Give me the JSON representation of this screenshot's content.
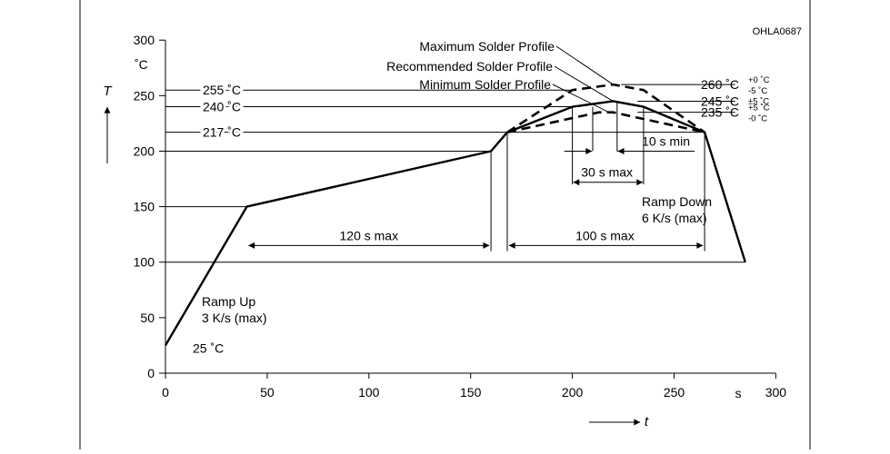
{
  "chart_data": {
    "type": "line",
    "figure_id": "OHLA0687",
    "xlabel": "t",
    "ylabel": "T",
    "x_unit": "s",
    "y_unit": "˚C",
    "xlim": [
      0,
      300
    ],
    "ylim": [
      0,
      300
    ],
    "x_ticks": [
      0,
      50,
      100,
      150,
      200,
      250,
      300
    ],
    "y_ticks": [
      0,
      50,
      100,
      150,
      200,
      250,
      300
    ],
    "series": [
      {
        "name": "Recommended Solder Profile",
        "style": "solid",
        "points": [
          [
            0,
            25
          ],
          [
            40,
            150
          ],
          [
            160,
            200
          ],
          [
            168,
            217
          ],
          [
            200,
            240
          ],
          [
            220,
            245
          ],
          [
            235,
            240
          ],
          [
            265,
            217
          ],
          [
            285,
            100
          ]
        ]
      },
      {
        "name": "Maximum Solder Profile",
        "style": "dashed",
        "points": [
          [
            168,
            217
          ],
          [
            200,
            255
          ],
          [
            220,
            260
          ],
          [
            235,
            255
          ],
          [
            265,
            217
          ]
        ]
      },
      {
        "name": "Minimum Solder Profile",
        "style": "dashed",
        "points": [
          [
            168,
            217
          ],
          [
            213,
            235
          ],
          [
            220,
            235
          ],
          [
            265,
            217
          ]
        ]
      }
    ],
    "level_labels": [
      {
        "y": 255,
        "text": "255 ˚C"
      },
      {
        "y": 240,
        "text": "240 ˚C"
      },
      {
        "y": 217,
        "text": "217 ˚C"
      },
      {
        "y": 25,
        "text": "25 ˚C"
      }
    ],
    "right_labels": [
      {
        "y": 260,
        "main": "260 ˚C",
        "sup": "+0 ˚C",
        "sub": "-5 ˚C"
      },
      {
        "y": 245,
        "main": "245 ˚C",
        "sup": "±5 ˚C",
        "sub": ""
      },
      {
        "y": 235,
        "main": "235 ˚C",
        "sup": "+5 ˚C",
        "sub": "-0 ˚C"
      }
    ],
    "annotations": {
      "ramp_up_line1": "Ramp Up",
      "ramp_up_line2": "3 K/s (max)",
      "ramp_down_line1": "Ramp Down",
      "ramp_down_line2": "6 K/s (max)",
      "dim_120": "120 s max",
      "dim_100": "100 s max",
      "dim_30": "30 s max",
      "dim_10": "10 s min"
    }
  }
}
